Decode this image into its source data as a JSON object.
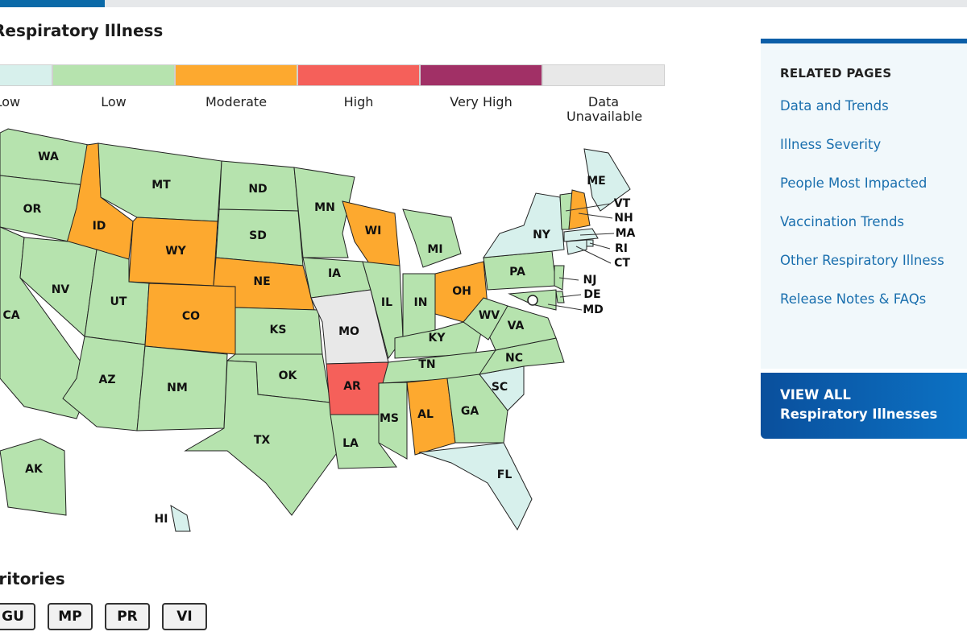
{
  "header": {
    "title": "Respiratory Illness"
  },
  "legend": [
    {
      "label": "Very Low",
      "color": "#d7f0ec"
    },
    {
      "label": "Low",
      "color": "#b6e3ae"
    },
    {
      "label": "Moderate",
      "color": "#fda92f"
    },
    {
      "label": "High",
      "color": "#f5605a"
    },
    {
      "label": "Very High",
      "color": "#a13066"
    },
    {
      "label": "Data Unavailable",
      "color": "#e8e8e8"
    }
  ],
  "map": {
    "states": [
      {
        "label": "WA",
        "color": "#b6e3ae"
      },
      {
        "label": "OR",
        "color": "#b6e3ae"
      },
      {
        "label": "CA",
        "color": "#b6e3ae"
      },
      {
        "label": "ID",
        "color": "#fda92f"
      },
      {
        "label": "NV",
        "color": "#b6e3ae"
      },
      {
        "label": "MT",
        "color": "#b6e3ae"
      },
      {
        "label": "WY",
        "color": "#fda92f"
      },
      {
        "label": "UT",
        "color": "#b6e3ae"
      },
      {
        "label": "AZ",
        "color": "#b6e3ae"
      },
      {
        "label": "CO",
        "color": "#fda92f"
      },
      {
        "label": "NM",
        "color": "#b6e3ae"
      },
      {
        "label": "ND",
        "color": "#b6e3ae"
      },
      {
        "label": "SD",
        "color": "#b6e3ae"
      },
      {
        "label": "NE",
        "color": "#fda92f"
      },
      {
        "label": "KS",
        "color": "#b6e3ae"
      },
      {
        "label": "OK",
        "color": "#b6e3ae"
      },
      {
        "label": "TX",
        "color": "#b6e3ae"
      },
      {
        "label": "MN",
        "color": "#b6e3ae"
      },
      {
        "label": "IA",
        "color": "#b6e3ae"
      },
      {
        "label": "MO",
        "color": "#e8e8e8"
      },
      {
        "label": "AR",
        "color": "#f5605a"
      },
      {
        "label": "LA",
        "color": "#b6e3ae"
      },
      {
        "label": "WI",
        "color": "#fda92f"
      },
      {
        "label": "IL",
        "color": "#b6e3ae"
      },
      {
        "label": "MI",
        "color": "#b6e3ae"
      },
      {
        "label": "IN",
        "color": "#b6e3ae"
      },
      {
        "label": "OH",
        "color": "#fda92f"
      },
      {
        "label": "KY",
        "color": "#b6e3ae"
      },
      {
        "label": "TN",
        "color": "#b6e3ae"
      },
      {
        "label": "MS",
        "color": "#b6e3ae"
      },
      {
        "label": "AL",
        "color": "#fda92f"
      },
      {
        "label": "GA",
        "color": "#b6e3ae"
      },
      {
        "label": "FL",
        "color": "#d7f0ec"
      },
      {
        "label": "SC",
        "color": "#d7f0ec"
      },
      {
        "label": "NC",
        "color": "#b6e3ae"
      },
      {
        "label": "VA",
        "color": "#b6e3ae"
      },
      {
        "label": "WV",
        "color": "#b6e3ae"
      },
      {
        "label": "PA",
        "color": "#b6e3ae"
      },
      {
        "label": "NY",
        "color": "#d7f0ec"
      },
      {
        "label": "ME",
        "color": "#d7f0ec"
      },
      {
        "label": "VT",
        "color": "#b6e3ae"
      },
      {
        "label": "NH",
        "color": "#fda92f"
      },
      {
        "label": "MA",
        "color": "#d7f0ec"
      },
      {
        "label": "RI",
        "color": "#d7f0ec"
      },
      {
        "label": "CT",
        "color": "#d7f0ec"
      },
      {
        "label": "NJ",
        "color": "#b6e3ae"
      },
      {
        "label": "DE",
        "color": "#b6e3ae"
      },
      {
        "label": "MD",
        "color": "#b6e3ae"
      },
      {
        "label": "AK",
        "color": "#b6e3ae"
      },
      {
        "label": "HI",
        "color": "#d7f0ec"
      }
    ]
  },
  "territories": {
    "title": "Territories",
    "buttons": [
      "GU",
      "MP",
      "PR",
      "VI"
    ]
  },
  "sidebar": {
    "title": "RELATED PAGES",
    "links": [
      "Data and Trends",
      "Illness Severity",
      "People Most Impacted",
      "Vaccination Trends",
      "Other Respiratory Illness",
      "Release Notes & FAQs"
    ],
    "cta": {
      "line1": "VIEW ALL",
      "line2": "Respiratory Illnesses"
    }
  }
}
